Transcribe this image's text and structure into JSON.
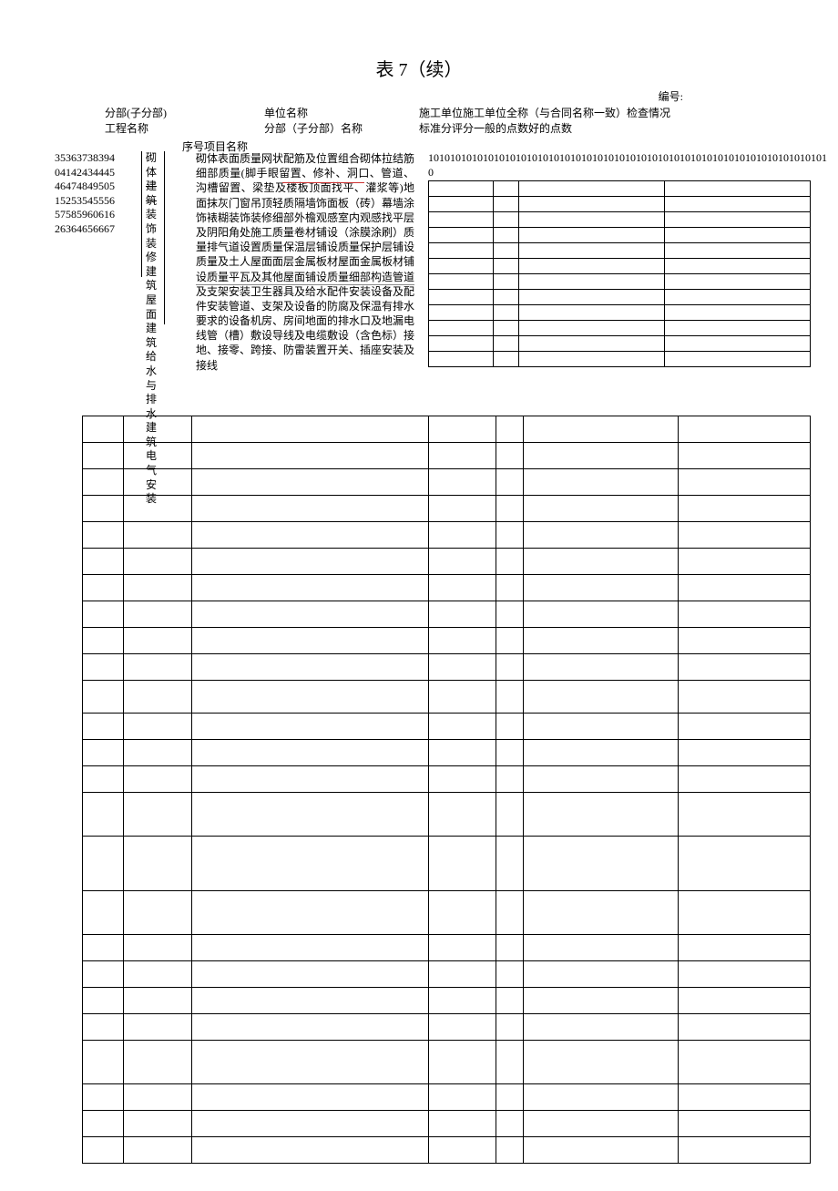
{
  "title": "表 7（续）",
  "docno_label": "编号:",
  "header": {
    "left_line1": "分部(子分部)",
    "left_line2": "工程名称",
    "mid_line1": "单位名称",
    "mid_line2": "分部（子分部）名称",
    "right_line1": "施工单位施工单位全称（与合同名称一致）检查情况",
    "right_line2": "标准分评分一般的点数好的点数",
    "seq_label": "序号项目名称"
  },
  "serial_numbers": "353637383940414243444546474849505152535455565758596061626364656667",
  "categories": [
    {
      "text": "砌体",
      "strike": false
    },
    {
      "text": "建筑",
      "strike": true
    },
    {
      "text": "装饰",
      "strike": false
    },
    {
      "text": "装修",
      "strike": false
    },
    {
      "text": "建筑",
      "strike": false
    },
    {
      "text": "屋面",
      "strike": false
    },
    {
      "text": "建筑",
      "strike": false
    },
    {
      "text": "给水",
      "strike": false
    },
    {
      "text": "与排",
      "strike": false
    },
    {
      "text": "水建",
      "strike": false
    },
    {
      "text": "筑电",
      "strike": false
    },
    {
      "text": "气安",
      "strike": false
    },
    {
      "text": "装",
      "strike": false
    }
  ],
  "description": "砌体表面质量网状配筋及位置组合砌体拉结筋细部质量(脚手眼留置、修补、洞口、管道、沟槽留置、梁垫及楼板顶面找平、灌浆等)地面抹灰门窗吊顶轻质隔墙饰面板（砖）幕墙涂饰裱糊装饰装修细部外檐观感室内观感找平层及阴阳角处施工质量卷材铺设（涂膜涂刷）质量排气道设置质量保温层铺设质量保护层铺设质量及土人屋面面层金属板材屋面金属板材铺设质量平瓦及其他屋面铺设质量细部构造管道及支架安装卫生器具及给水配件安装设备及配件安装管道、支架及设备的防腐及保温有排水要求的设备机房、房间地面的排水口及地漏电线管（槽）敷设导线及电缆敷设（含色标）接地、接零、跨接、防雷装置开关、插座安装及接线",
  "numbers_row": "10101010101010101010101010101010101010101010101010101010101010101010101010",
  "small_grid": {
    "rows": 12,
    "cols": 4,
    "col_widths": [
      "gc1",
      "gc2",
      "gcL",
      "gcL"
    ]
  },
  "main_grid": {
    "columns": 7,
    "col_classes": [
      "mg-c1",
      "mg-c2",
      "mg-c3",
      "mg-c4",
      "mg-c5",
      "mg-c6",
      "mg-c7"
    ],
    "rows": [
      {
        "class": ""
      },
      {
        "class": ""
      },
      {
        "class": ""
      },
      {
        "class": ""
      },
      {
        "class": ""
      },
      {
        "class": ""
      },
      {
        "class": ""
      },
      {
        "class": ""
      },
      {
        "class": ""
      },
      {
        "class": ""
      },
      {
        "class": "gap-row"
      },
      {
        "class": ""
      },
      {
        "class": ""
      },
      {
        "class": ""
      },
      {
        "class": "tall-row"
      },
      {
        "class": "taller-row"
      },
      {
        "class": "tall-row"
      },
      {
        "class": ""
      },
      {
        "class": ""
      },
      {
        "class": ""
      },
      {
        "class": ""
      },
      {
        "class": "tall-row"
      },
      {
        "class": ""
      },
      {
        "class": ""
      },
      {
        "class": ""
      }
    ]
  },
  "colors": {
    "text": "#000000",
    "bg": "#ffffff",
    "redline": "#cc3333",
    "grayline": "#888888"
  }
}
